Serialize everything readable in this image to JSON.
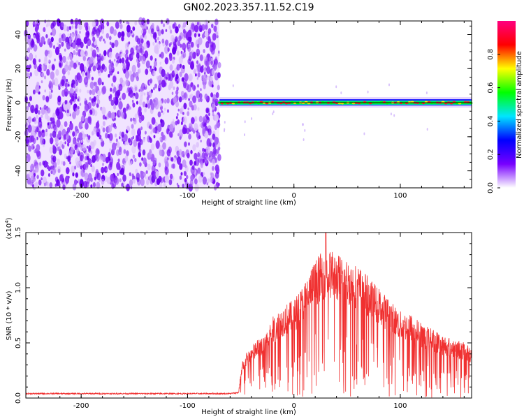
{
  "title": "GN02.2023.357.11.52.C19",
  "chart_data": [
    {
      "type": "heatmap",
      "xlabel": "Height of straight line (km)",
      "ylabel": "Frequency (Hz)",
      "xlim": [
        -252,
        167
      ],
      "ylim": [
        -50,
        48
      ],
      "xticks": [
        -200,
        -100,
        0,
        100
      ],
      "yticks": [
        -40,
        -20,
        0,
        20,
        40
      ],
      "noise_region_x": [
        -252,
        -70
      ],
      "signal_line": {
        "x_start": -70,
        "x_end": 167,
        "frequency_hz": 0
      },
      "colorbar": {
        "label": "Normalized spectral amplitude",
        "range": [
          0.0,
          1.0
        ],
        "ticks": [
          "0.0",
          "0.2",
          "0.4",
          "0.6",
          "0.8"
        ],
        "tick_values": [
          0,
          0.2,
          0.4,
          0.6,
          0.8
        ],
        "colors": [
          "#ffffff",
          "#7700ff",
          "#0000ff",
          "#00e5ff",
          "#00ff00",
          "#ffff00",
          "#ff0000",
          "#ff0080"
        ]
      },
      "grid": false
    },
    {
      "type": "line",
      "xlabel": "Height of straight line (km)",
      "ylabel": "SNR (10 * v/v)",
      "scale_label": "(x10",
      "scale_exponent": "4",
      "scale_close": ")",
      "xlim": [
        -252,
        167
      ],
      "ylim": [
        0,
        15000
      ],
      "xticks": [
        -200,
        -100,
        0,
        100
      ],
      "yticks": [
        "0.0",
        "0.5",
        "1.0",
        "1.5"
      ],
      "ytick_values": [
        0,
        5000,
        10000,
        15000
      ],
      "color": "#f03030",
      "envelope": {
        "x": [
          -252,
          -60,
          -52,
          -48,
          -40,
          -30,
          -20,
          -10,
          0,
          10,
          20,
          30,
          40,
          50,
          60,
          70,
          80,
          90,
          100,
          110,
          120,
          130,
          140,
          150,
          167
        ],
        "y": [
          400,
          400,
          500,
          3500,
          4500,
          5500,
          7000,
          8000,
          8500,
          10000,
          12000,
          13000,
          12500,
          12000,
          11500,
          10500,
          9500,
          8500,
          7500,
          7300,
          6500,
          6000,
          5500,
          5200,
          4500
        ]
      },
      "peak": {
        "x": 30,
        "y": 15000
      },
      "grid": false
    }
  ]
}
